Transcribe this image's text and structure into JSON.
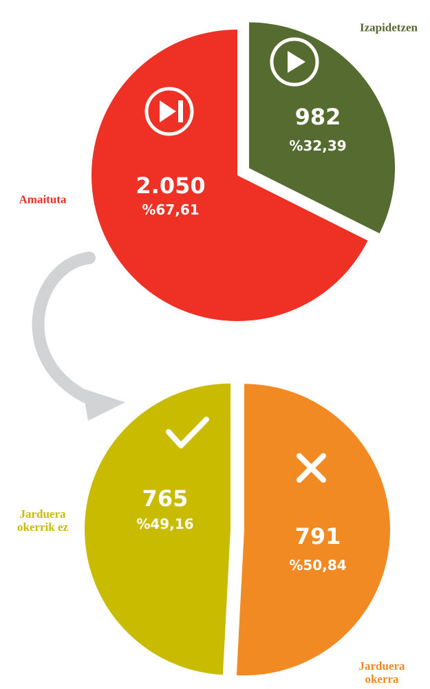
{
  "chart_data": [
    {
      "type": "pie",
      "categories": [
        "Izapidetzen",
        "Amaituta"
      ],
      "values": [
        982,
        2050
      ],
      "value_labels": [
        "982",
        "2.050"
      ],
      "percent_labels": [
        "%32,39",
        "%67,61"
      ],
      "colors": [
        "#566b30",
        "#ee3124"
      ]
    },
    {
      "type": "pie",
      "categories": [
        "Jarduera okerra",
        "Jarduera okerrik ez"
      ],
      "values": [
        791,
        765
      ],
      "value_labels": [
        "791",
        "765"
      ],
      "percent_labels": [
        "%50,84",
        "%49,16"
      ],
      "colors": [
        "#f28a24",
        "#c8bb00"
      ]
    }
  ]
}
